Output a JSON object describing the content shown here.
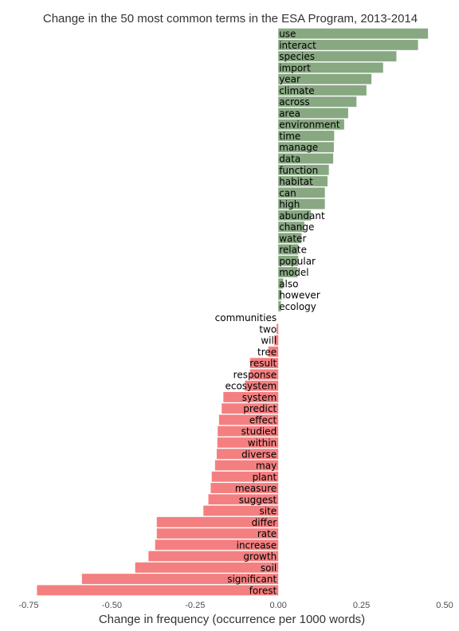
{
  "chart_data": {
    "type": "bar",
    "orientation": "horizontal",
    "title": "Change in the 50 most common terms in the ESA Program, 2013-2014",
    "xlabel": "Change in frequency (occurrence per 1000 words)",
    "xlim": [
      -0.75,
      0.5
    ],
    "xticks": [
      -0.75,
      -0.5,
      -0.25,
      0.0,
      0.25,
      0.5
    ],
    "xtick_labels": [
      "-0.75",
      "-0.50",
      "-0.25",
      "0.00",
      "0.25",
      "0.50"
    ],
    "grid": false,
    "colors": {
      "positive": "#88a882",
      "negative": "#f47f80"
    },
    "categories": [
      "use",
      "interact",
      "species",
      "import",
      "year",
      "climate",
      "across",
      "area",
      "environment",
      "time",
      "manage",
      "data",
      "function",
      "habitat",
      "can",
      "high",
      "abundant",
      "change",
      "water",
      "relate",
      "popular",
      "model",
      "also",
      "however",
      "ecology",
      "communities",
      "two",
      "will",
      "tree",
      "result",
      "response",
      "ecosystem",
      "system",
      "predict",
      "effect",
      "studied",
      "within",
      "diverse",
      "may",
      "plant",
      "measure",
      "suggest",
      "site",
      "differ",
      "rate",
      "increase",
      "growth",
      "soil",
      "significant",
      "forest"
    ],
    "values": [
      0.45,
      0.42,
      0.355,
      0.315,
      0.28,
      0.265,
      0.235,
      0.21,
      0.198,
      0.168,
      0.167,
      0.165,
      0.152,
      0.148,
      0.14,
      0.14,
      0.098,
      0.078,
      0.07,
      0.06,
      0.06,
      0.058,
      0.015,
      0.01,
      0.008,
      0.0,
      -0.005,
      -0.012,
      -0.03,
      -0.085,
      -0.085,
      -0.1,
      -0.165,
      -0.17,
      -0.178,
      -0.182,
      -0.183,
      -0.185,
      -0.19,
      -0.2,
      -0.203,
      -0.21,
      -0.225,
      -0.365,
      -0.365,
      -0.37,
      -0.39,
      -0.43,
      -0.59,
      -0.725
    ]
  }
}
